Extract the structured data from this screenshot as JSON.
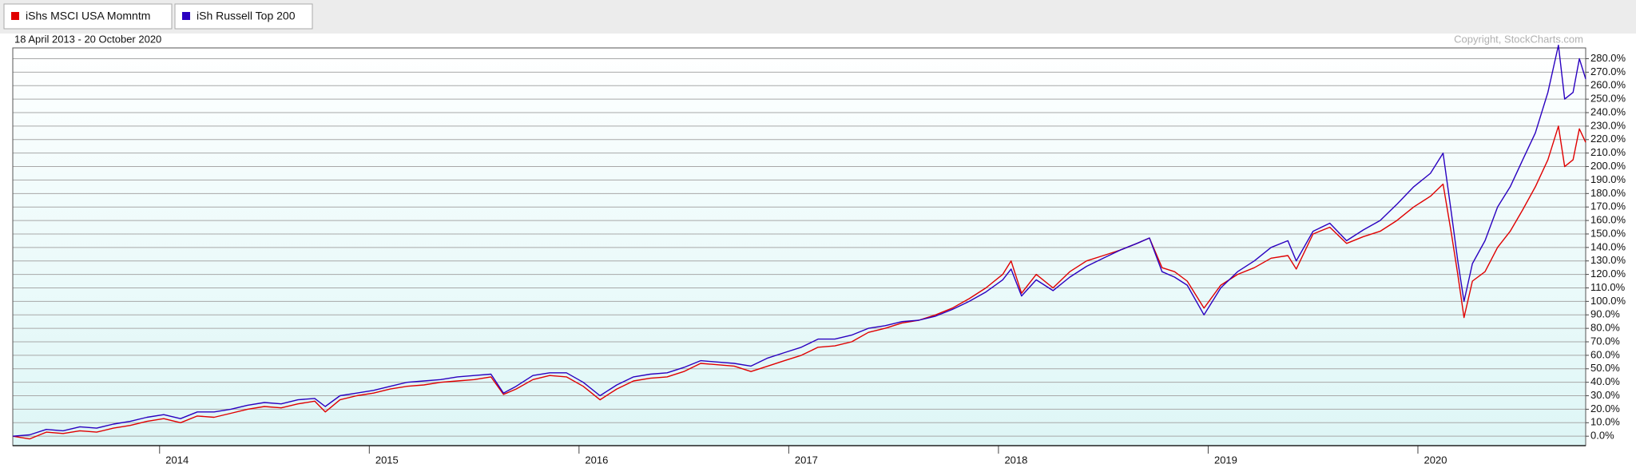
{
  "chart_data": {
    "type": "line",
    "subtitle": "18 April 2013 - 20 October 2020",
    "annotation": "Copyright, StockCharts.com",
    "x": [
      2013.3,
      2013.38,
      2013.46,
      2013.54,
      2013.62,
      2013.7,
      2013.78,
      2013.86,
      2013.94,
      2014.02,
      2014.1,
      2014.18,
      2014.26,
      2014.34,
      2014.42,
      2014.5,
      2014.58,
      2014.66,
      2014.74,
      2014.79,
      2014.86,
      2014.94,
      2015.02,
      2015.1,
      2015.18,
      2015.26,
      2015.34,
      2015.42,
      2015.5,
      2015.58,
      2015.64,
      2015.7,
      2015.78,
      2015.86,
      2015.94,
      2016.02,
      2016.1,
      2016.18,
      2016.26,
      2016.34,
      2016.42,
      2016.5,
      2016.58,
      2016.66,
      2016.74,
      2016.82,
      2016.9,
      2016.98,
      2017.06,
      2017.14,
      2017.22,
      2017.3,
      2017.38,
      2017.46,
      2017.54,
      2017.62,
      2017.7,
      2017.78,
      2017.86,
      2017.94,
      2018.02,
      2018.06,
      2018.11,
      2018.18,
      2018.26,
      2018.34,
      2018.42,
      2018.5,
      2018.58,
      2018.66,
      2018.72,
      2018.78,
      2018.84,
      2018.9,
      2018.98,
      2019.06,
      2019.14,
      2019.22,
      2019.3,
      2019.38,
      2019.42,
      2019.5,
      2019.58,
      2019.66,
      2019.74,
      2019.82,
      2019.9,
      2019.98,
      2020.06,
      2020.12,
      2020.16,
      2020.19,
      2020.22,
      2020.26,
      2020.32,
      2020.38,
      2020.44,
      2020.5,
      2020.56,
      2020.62,
      2020.67,
      2020.7,
      2020.74,
      2020.77,
      2020.8
    ],
    "series": [
      {
        "name": "iShs MSCI USA Momntm",
        "color": "#e00000",
        "values": [
          0,
          -2,
          3,
          2,
          4,
          3,
          6,
          8,
          11,
          13,
          10,
          15,
          14,
          17,
          20,
          22,
          21,
          24,
          26,
          18,
          27,
          30,
          32,
          35,
          37,
          38,
          40,
          41,
          42,
          44,
          31,
          35,
          42,
          45,
          44,
          37,
          27,
          35,
          41,
          43,
          44,
          48,
          54,
          53,
          52,
          48,
          52,
          56,
          60,
          66,
          67,
          70,
          77,
          80,
          84,
          86,
          90,
          95,
          102,
          110,
          120,
          130,
          106,
          120,
          110,
          122,
          130,
          134,
          138,
          143,
          147,
          125,
          122,
          115,
          95,
          112,
          120,
          125,
          132,
          134,
          124,
          150,
          155,
          143,
          148,
          152,
          160,
          170,
          178,
          187,
          150,
          120,
          88,
          115,
          122,
          140,
          152,
          168,
          185,
          205,
          230,
          200,
          205,
          228,
          218
        ]
      },
      {
        "name": "iSh Russell Top 200",
        "color": "#2a00c0",
        "values": [
          0,
          1,
          5,
          4,
          7,
          6,
          9,
          11,
          14,
          16,
          13,
          18,
          18,
          20,
          23,
          25,
          24,
          27,
          28,
          22,
          30,
          32,
          34,
          37,
          40,
          41,
          42,
          44,
          45,
          46,
          32,
          37,
          45,
          47,
          47,
          40,
          30,
          38,
          44,
          46,
          47,
          51,
          56,
          55,
          54,
          52,
          58,
          62,
          66,
          72,
          72,
          75,
          80,
          82,
          85,
          86,
          89,
          94,
          100,
          107,
          116,
          124,
          104,
          116,
          108,
          118,
          126,
          132,
          138,
          143,
          147,
          122,
          118,
          112,
          90,
          110,
          122,
          130,
          140,
          145,
          130,
          152,
          158,
          145,
          153,
          160,
          172,
          185,
          195,
          210,
          165,
          130,
          100,
          128,
          145,
          170,
          185,
          205,
          225,
          255,
          290,
          250,
          255,
          280,
          265
        ]
      }
    ],
    "xlim": [
      2013.3,
      2020.8
    ],
    "xticks": [
      2014,
      2015,
      2016,
      2017,
      2018,
      2019,
      2020
    ],
    "ylim": [
      -7,
      288
    ],
    "yticks": [
      {
        "value": 0,
        "label": "0.0%"
      },
      {
        "value": 10,
        "label": "10.0%"
      },
      {
        "value": 20,
        "label": "20.0%"
      },
      {
        "value": 30,
        "label": "30.0%"
      },
      {
        "value": 40,
        "label": "40.0%"
      },
      {
        "value": 50,
        "label": "50.0%"
      },
      {
        "value": 60,
        "label": "60.0%"
      },
      {
        "value": 70,
        "label": "70.0%"
      },
      {
        "value": 80,
        "label": "80.0%"
      },
      {
        "value": 90,
        "label": "90.0%"
      },
      {
        "value": 100,
        "label": "100.0%"
      },
      {
        "value": 110,
        "label": "110.0%"
      },
      {
        "value": 120,
        "label": "120.0%"
      },
      {
        "value": 130,
        "label": "130.0%"
      },
      {
        "value": 140,
        "label": "140.0%"
      },
      {
        "value": 150,
        "label": "150.0%"
      },
      {
        "value": 160,
        "label": "160.0%"
      },
      {
        "value": 170,
        "label": "170.0%"
      },
      {
        "value": 180,
        "label": "180.0%"
      },
      {
        "value": 190,
        "label": "190.0%"
      },
      {
        "value": 200,
        "label": "200.0%"
      },
      {
        "value": 210,
        "label": "210.0%"
      },
      {
        "value": 220,
        "label": "220.0%"
      },
      {
        "value": 230,
        "label": "230.0%"
      },
      {
        "value": 240,
        "label": "240.0%"
      },
      {
        "value": 250,
        "label": "250.0%"
      },
      {
        "value": 260,
        "label": "260.0%"
      },
      {
        "value": 270,
        "label": "270.0%"
      },
      {
        "value": 280,
        "label": "280.0%"
      }
    ],
    "grid": true
  }
}
